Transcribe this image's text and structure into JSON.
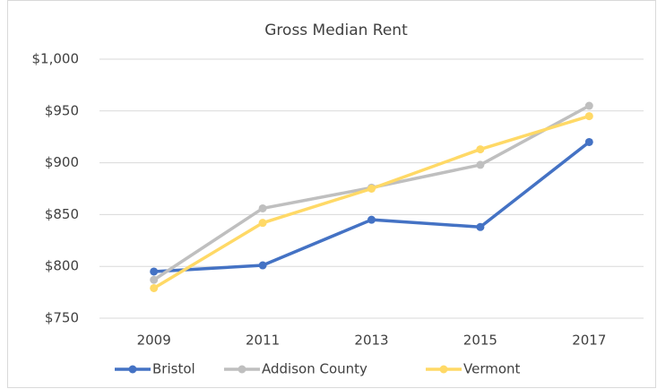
{
  "chart_data": {
    "type": "line",
    "title": "Gross Median Rent",
    "categories": [
      "2009",
      "2011",
      "2013",
      "2015",
      "2017"
    ],
    "series": [
      {
        "name": "Bristol",
        "color": "#4472c4",
        "values": [
          795,
          801,
          845,
          838,
          920
        ]
      },
      {
        "name": "Addison County",
        "color": "#bfbfbf",
        "values": [
          787,
          856,
          876,
          898,
          955
        ]
      },
      {
        "name": "Vermont",
        "color": "#ffd966",
        "values": [
          779,
          842,
          875,
          913,
          945
        ]
      }
    ],
    "ylim": [
      750,
      1000
    ],
    "yticks": [
      {
        "value": 750,
        "label": "$750"
      },
      {
        "value": 800,
        "label": "$800"
      },
      {
        "value": 850,
        "label": "$850"
      },
      {
        "value": 900,
        "label": "$900"
      },
      {
        "value": 950,
        "label": "$950"
      },
      {
        "value": 1000,
        "label": "$1,000"
      }
    ],
    "grid": true,
    "legend": "bottom"
  }
}
